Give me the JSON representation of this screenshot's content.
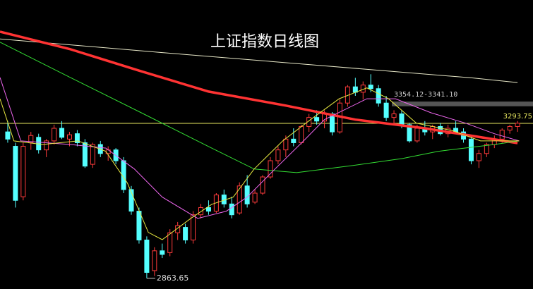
{
  "chart_data": {
    "type": "candlestick",
    "title": "上证指数日线图",
    "xlim": [
      -1,
      68
    ],
    "ylim": [
      2834,
      3636
    ],
    "up_color": "#ff3b3b",
    "down_color": "#54ffff",
    "candles": {
      "open": [
        3270,
        3230,
        3090,
        3240,
        3255,
        3220,
        3245,
        3280,
        3250,
        3265,
        3240,
        3180,
        3235,
        3210,
        3220,
        3190,
        3110,
        3050,
        2970,
        2885,
        2940,
        2935,
        2990,
        3005,
        2970,
        3040,
        3060,
        3050,
        3095,
        3070,
        3045,
        3120,
        3075,
        3100,
        3145,
        3190,
        3220,
        3250,
        3240,
        3285,
        3310,
        3300,
        3320,
        3270,
        3350,
        3395,
        3380,
        3400,
        3390,
        3350,
        3310,
        3320,
        3290,
        3245,
        3280,
        3270,
        3285,
        3265,
        3280,
        3270,
        3250,
        3190,
        3210,
        3235,
        3250,
        3275,
        3285
      ],
      "high": [
        3300,
        3240,
        3240,
        3270,
        3265,
        3250,
        3290,
        3300,
        3270,
        3275,
        3250,
        3240,
        3245,
        3230,
        3225,
        3200,
        3120,
        3060,
        2980,
        2950,
        2960,
        3000,
        3020,
        3015,
        3050,
        3070,
        3080,
        3100,
        3110,
        3090,
        3130,
        3150,
        3110,
        3150,
        3200,
        3230,
        3260,
        3280,
        3290,
        3320,
        3330,
        3330,
        3325,
        3360,
        3400,
        3420,
        3410,
        3430,
        3400,
        3370,
        3330,
        3330,
        3295,
        3290,
        3300,
        3290,
        3295,
        3290,
        3300,
        3280,
        3260,
        3220,
        3240,
        3260,
        3280,
        3290,
        3300
      ],
      "low": [
        3240,
        3060,
        3080,
        3220,
        3210,
        3200,
        3235,
        3250,
        3230,
        3230,
        3170,
        3170,
        3200,
        3190,
        3180,
        3100,
        3040,
        2960,
        2863.65,
        2870,
        2920,
        2925,
        2970,
        2960,
        2960,
        3030,
        3040,
        3045,
        3060,
        3030,
        3040,
        3060,
        3070,
        3095,
        3140,
        3180,
        3200,
        3230,
        3235,
        3270,
        3290,
        3280,
        3260,
        3265,
        3340,
        3370,
        3360,
        3380,
        3340,
        3300,
        3290,
        3280,
        3240,
        3240,
        3260,
        3250,
        3260,
        3255,
        3265,
        3240,
        3180,
        3170,
        3200,
        3225,
        3240,
        3265,
        3270
      ],
      "close": [
        3250,
        3080,
        3230,
        3260,
        3220,
        3245,
        3280,
        3255,
        3262,
        3240,
        3175,
        3235,
        3210,
        3220,
        3190,
        3110,
        3050,
        2970,
        2880,
        2940,
        2930,
        2990,
        3010,
        2970,
        3040,
        3060,
        3050,
        3095,
        3070,
        3040,
        3120,
        3070,
        3100,
        3145,
        3190,
        3220,
        3250,
        3240,
        3285,
        3310,
        3300,
        3320,
        3270,
        3350,
        3395,
        3380,
        3400,
        3390,
        3350,
        3310,
        3320,
        3290,
        3245,
        3280,
        3270,
        3285,
        3265,
        3280,
        3270,
        3250,
        3190,
        3210,
        3235,
        3250,
        3275,
        3285,
        3294
      ]
    },
    "series": [
      {
        "color": "#e8e8c8",
        "width": 1,
        "x": [
          -1,
          20,
          40,
          60,
          66
        ],
        "values": [
          3528,
          3490,
          3455,
          3420,
          3407
        ]
      },
      {
        "color": "#ff3333",
        "width": 3.5,
        "x": [
          -1,
          8,
          17,
          26,
          36,
          45,
          54,
          66
        ],
        "values": [
          3548,
          3500,
          3440,
          3382,
          3343,
          3304,
          3280,
          3239
        ]
      },
      {
        "color": "#33dd33",
        "width": 1,
        "x": [
          -1,
          8.1,
          17.3,
          26.4,
          31.9,
          37.4,
          44.7,
          51.1,
          55.7,
          63,
          66.2
        ],
        "values": [
          3519,
          3421,
          3323,
          3225,
          3167,
          3157,
          3177,
          3196,
          3216,
          3235,
          3245
        ]
      },
      {
        "color": "#ee66ee",
        "width": 1,
        "x": [
          -1,
          1.7,
          8.1,
          12.7,
          16.4,
          20,
          24.6,
          28.3,
          31,
          34.6,
          38.3,
          41,
          46.5,
          50.2,
          54.8,
          59.3,
          63,
          66.2
        ],
        "values": [
          3421,
          3245,
          3235,
          3225,
          3167,
          3089,
          3030,
          3050,
          3089,
          3167,
          3245,
          3304,
          3362,
          3362,
          3323,
          3294,
          3265,
          3245
        ]
      },
      {
        "color": "#e8e840",
        "width": 1,
        "x": [
          -1,
          0.8,
          4.5,
          9.1,
          12.7,
          15.5,
          18.2,
          20,
          23.7,
          26.4,
          29.2,
          31.9,
          35.6,
          39.2,
          42.9,
          46.5,
          49.3,
          52.9,
          57.5,
          61.2,
          66.2
        ],
        "values": [
          3362,
          3245,
          3235,
          3245,
          3216,
          3128,
          2991,
          2971,
          3030,
          3069,
          3089,
          3167,
          3245,
          3304,
          3362,
          3392,
          3362,
          3294,
          3274,
          3245,
          3245
        ]
      }
    ],
    "annotations": [
      {
        "label": "2863.65",
        "value": 2863.65,
        "x": 18
      },
      {
        "label": "3293.75",
        "value": 3293.75
      },
      {
        "label": "3354.12-3341.10",
        "high": 3354.12,
        "low": 3341.1
      }
    ]
  }
}
